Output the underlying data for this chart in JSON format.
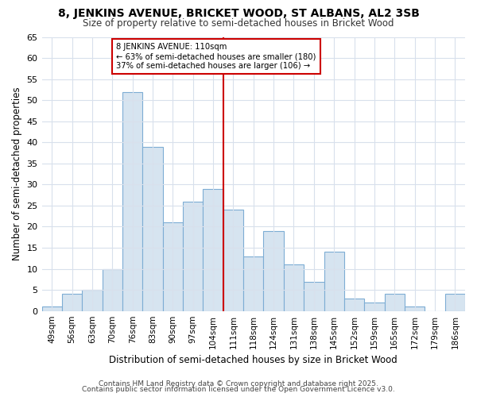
{
  "title1": "8, JENKINS AVENUE, BRICKET WOOD, ST ALBANS, AL2 3SB",
  "title2": "Size of property relative to semi-detached houses in Bricket Wood",
  "xlabel": "Distribution of semi-detached houses by size in Bricket Wood",
  "ylabel": "Number of semi-detached properties",
  "footnote1": "Contains HM Land Registry data © Crown copyright and database right 2025.",
  "footnote2": "Contains public sector information licensed under the Open Government Licence v3.0.",
  "categories": [
    "49sqm",
    "56sqm",
    "63sqm",
    "70sqm",
    "76sqm",
    "83sqm",
    "90sqm",
    "97sqm",
    "104sqm",
    "111sqm",
    "118sqm",
    "124sqm",
    "131sqm",
    "138sqm",
    "145sqm",
    "152sqm",
    "159sqm",
    "165sqm",
    "172sqm",
    "179sqm",
    "186sqm"
  ],
  "values": [
    1,
    4,
    5,
    10,
    52,
    39,
    21,
    26,
    29,
    24,
    13,
    19,
    11,
    7,
    14,
    3,
    2,
    4,
    1,
    0,
    4
  ],
  "bar_color": "#d6e4f0",
  "bar_edge_color": "#7dadd4",
  "vline_color": "#cc0000",
  "annotation_title": "8 JENKINS AVENUE: 110sqm",
  "annotation_line1": "← 63% of semi-detached houses are smaller (180)",
  "annotation_line2": "37% of semi-detached houses are larger (106) →",
  "annotation_box_color": "#cc0000",
  "ylim": [
    0,
    65
  ],
  "yticks": [
    0,
    5,
    10,
    15,
    20,
    25,
    30,
    35,
    40,
    45,
    50,
    55,
    60,
    65
  ],
  "grid_color": "#d8e0ec",
  "bg_color": "#ffffff"
}
